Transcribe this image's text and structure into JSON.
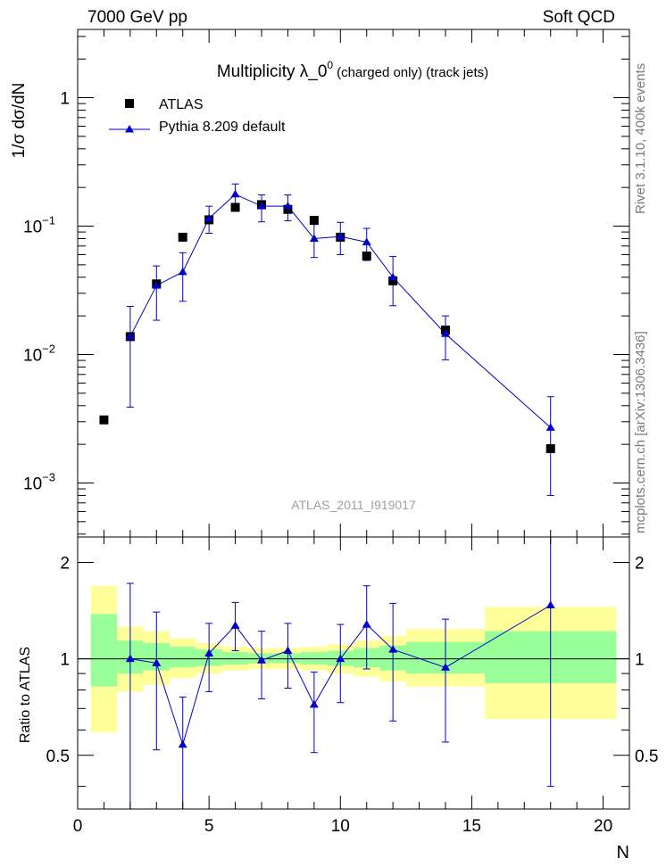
{
  "header": {
    "left": "7000 GeV pp",
    "right": "Soft QCD"
  },
  "side_labels": {
    "top": "Rivet 3.1.10, 400k events",
    "bottom": "mcplots.cern.ch [arXiv:1306.3436]"
  },
  "watermark": "ATLAS_2011_I919017",
  "chart_data": [
    {
      "type": "scatter",
      "panel": "main",
      "title": "Multiplicity  λ_0⁰ (charged only) (track jets)",
      "title_main": "Multiplicity  λ_0",
      "title_sup": "0",
      "title_rest": "(charged only) (track jets)",
      "ylabel": "1/σ dσ/dN",
      "xlabel": "",
      "xlim": [
        0,
        21
      ],
      "ylim": [
        0.00038,
        3.4
      ],
      "yscale": "log",
      "y_ticks": [
        {
          "value": 1,
          "label": "1",
          "sup": ""
        },
        {
          "value": 0.1,
          "label": "10",
          "sup": "−1"
        },
        {
          "value": 0.01,
          "label": "10",
          "sup": "−2"
        },
        {
          "value": 0.001,
          "label": "10",
          "sup": "−3"
        }
      ],
      "legend": [
        "ATLAS",
        "Pythia 8.209 default"
      ],
      "legend_position": "top-left",
      "series": [
        {
          "name": "ATLAS",
          "marker": "square",
          "color": "#000000",
          "x": [
            1,
            2,
            3,
            4,
            5,
            6,
            7,
            8,
            9,
            10,
            11,
            12,
            14,
            18
          ],
          "y": [
            0.0031,
            0.0138,
            0.0355,
            0.082,
            0.112,
            0.14,
            0.147,
            0.135,
            0.111,
            0.082,
            0.0585,
            0.0375,
            0.0155,
            0.00185
          ]
        },
        {
          "name": "Pythia 8.209 default",
          "marker": "triangle",
          "color": "#0000cc",
          "x": [
            2,
            3,
            4,
            5,
            6,
            7,
            8,
            9,
            10,
            11,
            12,
            14,
            18
          ],
          "y": [
            0.0138,
            0.0345,
            0.044,
            0.115,
            0.177,
            0.143,
            0.143,
            0.08,
            0.083,
            0.075,
            0.04,
            0.0145,
            0.0027
          ],
          "yerr_low": [
            0.0039,
            0.0185,
            0.026,
            0.088,
            0.147,
            0.108,
            0.11,
            0.057,
            0.06,
            0.054,
            0.024,
            0.0091,
            0.0008
          ],
          "yerr_high": [
            0.0237,
            0.049,
            0.062,
            0.143,
            0.213,
            0.175,
            0.175,
            0.103,
            0.107,
            0.096,
            0.058,
            0.02,
            0.0047
          ]
        }
      ]
    },
    {
      "type": "line",
      "panel": "ratio",
      "ylabel": "Ratio to ATLAS",
      "xlabel": "N",
      "xlim": [
        0,
        21
      ],
      "ylim": [
        0.34,
        2.4
      ],
      "yscale": "log",
      "y_ticks": [
        0.5,
        1,
        2
      ],
      "x_ticks": [
        0,
        5,
        10,
        15,
        20
      ],
      "bands": [
        {
          "x_low": 0.5,
          "x_high": 1.5,
          "yellow": [
            0.59,
            1.69
          ],
          "green": [
            0.82,
            1.38
          ]
        },
        {
          "x_low": 1.5,
          "x_high": 2.5,
          "yellow": [
            0.79,
            1.26
          ],
          "green": [
            0.9,
            1.14
          ]
        },
        {
          "x_low": 2.5,
          "x_high": 3.5,
          "yellow": [
            0.83,
            1.22
          ],
          "green": [
            0.92,
            1.12
          ]
        },
        {
          "x_low": 3.5,
          "x_high": 4.5,
          "yellow": [
            0.87,
            1.16
          ],
          "green": [
            0.94,
            1.09
          ]
        },
        {
          "x_low": 4.5,
          "x_high": 5.5,
          "yellow": [
            0.9,
            1.12
          ],
          "green": [
            0.95,
            1.07
          ]
        },
        {
          "x_low": 5.5,
          "x_high": 6.5,
          "yellow": [
            0.92,
            1.09
          ],
          "green": [
            0.96,
            1.05
          ]
        },
        {
          "x_low": 6.5,
          "x_high": 7.5,
          "yellow": [
            0.93,
            1.08
          ],
          "green": [
            0.97,
            1.04
          ]
        },
        {
          "x_low": 7.5,
          "x_high": 8.5,
          "yellow": [
            0.93,
            1.08
          ],
          "green": [
            0.97,
            1.04
          ]
        },
        {
          "x_low": 8.5,
          "x_high": 9.5,
          "yellow": [
            0.92,
            1.09
          ],
          "green": [
            0.96,
            1.05
          ]
        },
        {
          "x_low": 9.5,
          "x_high": 10.5,
          "yellow": [
            0.9,
            1.11
          ],
          "green": [
            0.95,
            1.06
          ]
        },
        {
          "x_low": 10.5,
          "x_high": 11.5,
          "yellow": [
            0.88,
            1.14
          ],
          "green": [
            0.94,
            1.08
          ]
        },
        {
          "x_low": 11.5,
          "x_high": 12.5,
          "yellow": [
            0.85,
            1.18
          ],
          "green": [
            0.92,
            1.1
          ]
        },
        {
          "x_low": 12.5,
          "x_high": 15.5,
          "yellow": [
            0.82,
            1.24
          ],
          "green": [
            0.9,
            1.13
          ]
        },
        {
          "x_low": 15.5,
          "x_high": 20.5,
          "yellow": [
            0.65,
            1.45
          ],
          "green": [
            0.84,
            1.22
          ]
        }
      ],
      "reference_line": 1,
      "series": [
        {
          "name": "Pythia 8.209 default",
          "color": "#0000cc",
          "x": [
            2,
            3,
            4,
            5,
            6,
            7,
            8,
            9,
            10,
            11,
            12,
            14,
            18
          ],
          "y": [
            1.0,
            0.97,
            0.54,
            1.04,
            1.27,
            0.99,
            1.06,
            0.72,
            1.0,
            1.28,
            1.07,
            0.94,
            1.47
          ],
          "yerr_low": [
            0.3,
            0.52,
            0.32,
            0.79,
            1.06,
            0.75,
            0.81,
            0.51,
            0.73,
            0.93,
            0.64,
            0.55,
            0.4
          ],
          "yerr_high": [
            1.72,
            1.4,
            0.76,
            1.29,
            1.5,
            1.22,
            1.29,
            0.91,
            1.28,
            1.69,
            1.49,
            1.33,
            2.45
          ]
        }
      ]
    }
  ]
}
